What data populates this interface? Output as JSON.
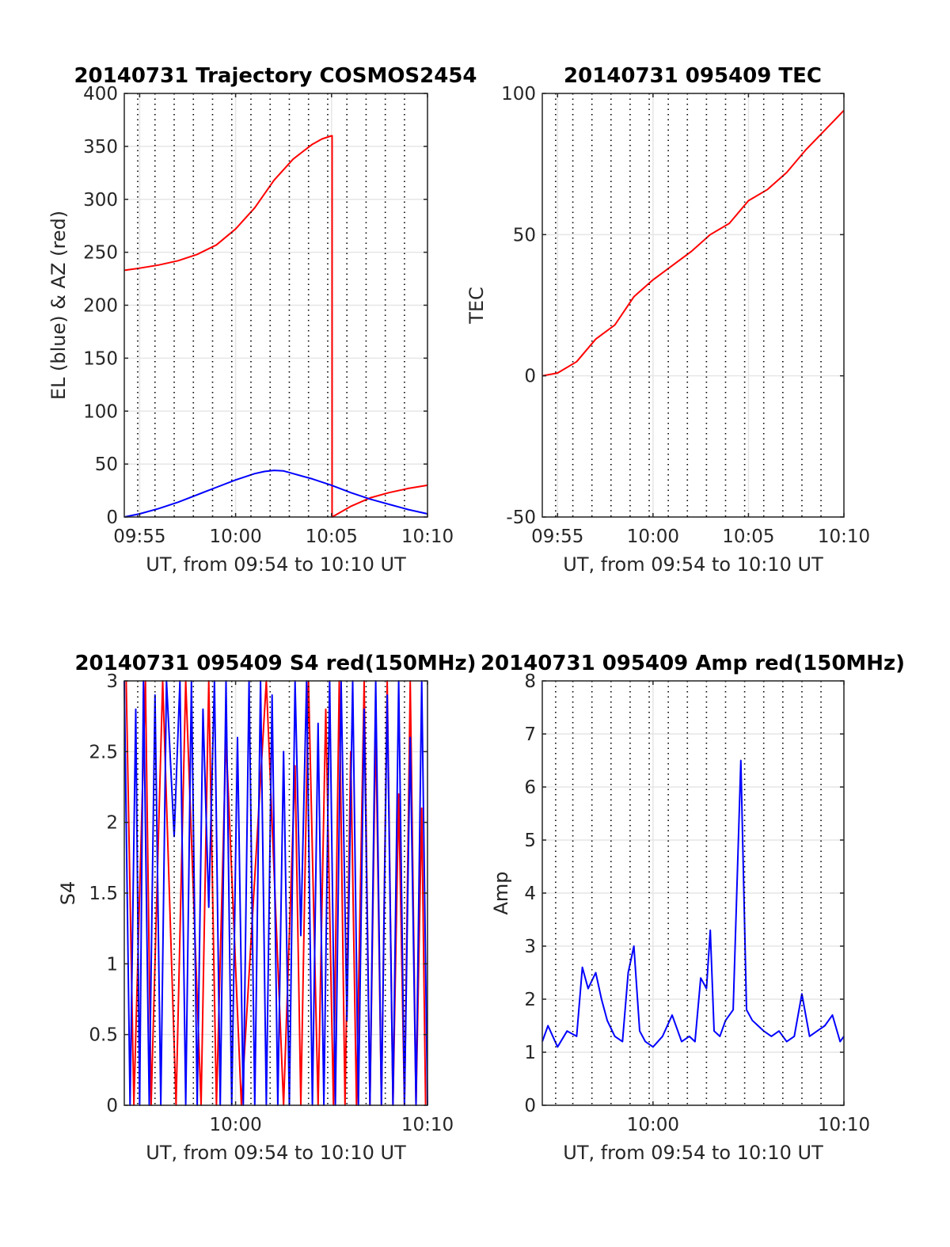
{
  "chart_data": [
    {
      "type": "line",
      "title": "20140731 Trajectory COSMOS2454",
      "xlabel": "UT, from 09:54 to 10:10 UT",
      "ylabel": "EL (blue) & AZ (red)",
      "xlim": [
        9.2,
        25.0
      ],
      "ylim": [
        0,
        400
      ],
      "xticks": [
        {
          "value": 10.0,
          "label": "09:55"
        },
        {
          "value": 15.0,
          "label": "10:00"
        },
        {
          "value": 20.0,
          "label": "10:05"
        },
        {
          "value": 25.0,
          "label": "10:10"
        }
      ],
      "yticks": [
        0,
        50,
        100,
        150,
        200,
        250,
        300,
        350,
        400
      ],
      "grid": true,
      "series": [
        {
          "color": "#ff0000",
          "x": [
            9.2,
            10.0,
            11.0,
            12.0,
            13.0,
            14.0,
            15.0,
            16.0,
            17.0,
            18.0,
            19.0,
            19.5,
            20.0,
            20.03,
            20.03,
            21.0,
            22.0,
            23.0,
            24.0,
            25.0
          ],
          "values": [
            233,
            235,
            238,
            242,
            248,
            257,
            272,
            292,
            318,
            338,
            352,
            357,
            360,
            360,
            0,
            10,
            18,
            23,
            27,
            30
          ]
        },
        {
          "color": "#0000ff",
          "x": [
            9.2,
            10.0,
            11.0,
            12.0,
            13.0,
            14.0,
            15.0,
            16.0,
            16.5,
            17.0,
            17.5,
            18.0,
            19.0,
            20.0,
            21.0,
            22.0,
            23.0,
            24.0,
            25.0
          ],
          "values": [
            0,
            3,
            8,
            14,
            21,
            28,
            35,
            41,
            43,
            44,
            43.5,
            41,
            36,
            30,
            23,
            17,
            12,
            7,
            3
          ]
        }
      ]
    },
    {
      "type": "line",
      "title": "20140731 095409 TEC",
      "xlabel": "UT, from 09:54 to 10:10 UT",
      "ylabel": "TEC",
      "xlim": [
        9.2,
        25.0
      ],
      "ylim": [
        -50,
        100
      ],
      "xticks": [
        {
          "value": 10.0,
          "label": "09:55"
        },
        {
          "value": 15.0,
          "label": "10:00"
        },
        {
          "value": 20.0,
          "label": "10:05"
        },
        {
          "value": 25.0,
          "label": "10:10"
        }
      ],
      "yticks": [
        -50,
        0,
        50,
        100
      ],
      "grid": true,
      "series": [
        {
          "color": "#ff0000",
          "x": [
            9.2,
            10.0,
            11.0,
            12.0,
            13.0,
            14.0,
            15.0,
            16.0,
            17.0,
            18.0,
            19.0,
            20.0,
            21.0,
            22.0,
            23.0,
            24.0,
            25.0
          ],
          "values": [
            0,
            1,
            5,
            13,
            18,
            28,
            34,
            39,
            44,
            50,
            54,
            62,
            66,
            72,
            80,
            87,
            94
          ]
        }
      ]
    },
    {
      "type": "line",
      "title": "20140731 095409 S4 red(150MHz)",
      "xlabel": "UT, from 09:54 to 10:10 UT",
      "ylabel": "S4",
      "xlim": [
        9.2,
        25.0
      ],
      "ylim": [
        0,
        3
      ],
      "xticks": [
        {
          "value": 15.0,
          "label": "10:00"
        },
        {
          "value": 25.0,
          "label": "10:10"
        }
      ],
      "yticks": [
        {
          "value": 0,
          "label": "0"
        },
        {
          "value": 0.5,
          "label": "0.5"
        },
        {
          "value": 1,
          "label": "1"
        },
        {
          "value": 1.5,
          "label": "1.5"
        },
        {
          "value": 2,
          "label": "2"
        },
        {
          "value": 2.5,
          "label": "2.5"
        },
        {
          "value": 3,
          "label": "3"
        }
      ],
      "grid": true,
      "series": [
        {
          "color": "#ff0000",
          "x": [
            9.3,
            9.7,
            10.3,
            10.6,
            11.2,
            11.9,
            12.4,
            13.2,
            13.6,
            14.0,
            14.5,
            15.3,
            16.6,
            17.5,
            18.1,
            18.4,
            18.8,
            19.3,
            19.7,
            20.1,
            20.4,
            20.7,
            21.0,
            21.3,
            21.7,
            22.0,
            22.3,
            22.6,
            22.9,
            23.2,
            23.5,
            23.8,
            24.1,
            24.4,
            24.7,
            24.9
          ],
          "values": [
            3.0,
            0.0,
            3.0,
            0.0,
            3.0,
            0.0,
            3.0,
            0.0,
            3.0,
            0.0,
            2.6,
            0.0,
            3.0,
            0.0,
            2.4,
            0.0,
            3.0,
            0.0,
            2.8,
            0.0,
            3.0,
            0.0,
            2.5,
            0.0,
            3.0,
            0.0,
            2.7,
            0.0,
            3.0,
            0.0,
            2.2,
            0.0,
            3.0,
            0.0,
            2.1,
            0.0
          ]
        },
        {
          "color": "#0000ff",
          "x": [
            9.2,
            9.5,
            9.8,
            10.0,
            10.2,
            10.5,
            10.8,
            11.1,
            11.4,
            11.8,
            12.1,
            12.4,
            12.7,
            13.0,
            13.3,
            13.6,
            13.9,
            14.2,
            14.5,
            14.8,
            15.1,
            15.4,
            15.7,
            16.0,
            16.3,
            16.6,
            16.9,
            17.2,
            17.5,
            17.8,
            18.1,
            18.4,
            18.7,
            19.0,
            19.3,
            19.6,
            19.9,
            20.2,
            20.5,
            20.8,
            21.1,
            21.4,
            21.7,
            22.0,
            22.3,
            22.6,
            22.9,
            23.2,
            23.5,
            23.8,
            24.1,
            24.4,
            24.7,
            25.0
          ],
          "values": [
            3.0,
            0.0,
            2.8,
            0.0,
            3.0,
            0.0,
            2.9,
            0.0,
            3.0,
            1.9,
            3.0,
            0.0,
            3.0,
            0.0,
            2.8,
            1.4,
            3.0,
            0.0,
            3.0,
            0.0,
            2.6,
            0.0,
            3.0,
            0.0,
            3.0,
            0.0,
            2.9,
            0.0,
            2.5,
            0.0,
            3.0,
            1.2,
            3.0,
            0.0,
            2.7,
            0.0,
            3.0,
            0.0,
            3.0,
            0.6,
            3.0,
            0.0,
            2.8,
            0.0,
            3.0,
            0.0,
            2.9,
            0.0,
            3.0,
            0.0,
            2.6,
            0.0,
            3.0,
            0.0
          ]
        }
      ]
    },
    {
      "type": "line",
      "title": "20140731 095409 Amp red(150MHz)",
      "xlabel": "UT, from 09:54 to 10:10 UT",
      "ylabel": "Amp",
      "xlim": [
        9.2,
        25.0
      ],
      "ylim": [
        0,
        8
      ],
      "xticks": [
        {
          "value": 15.0,
          "label": "10:00"
        },
        {
          "value": 25.0,
          "label": "10:10"
        }
      ],
      "yticks": [
        0,
        1,
        2,
        3,
        4,
        5,
        6,
        7,
        8
      ],
      "grid": true,
      "series": [
        {
          "color": "#0000ff",
          "x": [
            9.2,
            9.5,
            10.0,
            10.5,
            11.0,
            11.3,
            11.6,
            12.0,
            12.3,
            12.6,
            13.0,
            13.4,
            13.7,
            14.0,
            14.3,
            14.6,
            15.0,
            15.5,
            16.0,
            16.5,
            16.9,
            17.2,
            17.5,
            17.8,
            18.0,
            18.2,
            18.5,
            18.8,
            19.2,
            19.6,
            19.9,
            20.2,
            20.5,
            20.8,
            21.2,
            21.6,
            22.0,
            22.4,
            22.8,
            23.2,
            23.6,
            24.0,
            24.4,
            24.8,
            25.0
          ],
          "values": [
            1.2,
            1.5,
            1.1,
            1.4,
            1.3,
            2.6,
            2.2,
            2.5,
            2.0,
            1.6,
            1.3,
            1.2,
            2.5,
            3.0,
            1.4,
            1.2,
            1.1,
            1.3,
            1.7,
            1.2,
            1.3,
            1.2,
            2.4,
            2.2,
            3.3,
            1.4,
            1.3,
            1.6,
            1.8,
            6.5,
            1.8,
            1.6,
            1.5,
            1.4,
            1.3,
            1.4,
            1.2,
            1.3,
            2.1,
            1.3,
            1.4,
            1.5,
            1.7,
            1.2,
            1.3
          ]
        }
      ]
    }
  ]
}
